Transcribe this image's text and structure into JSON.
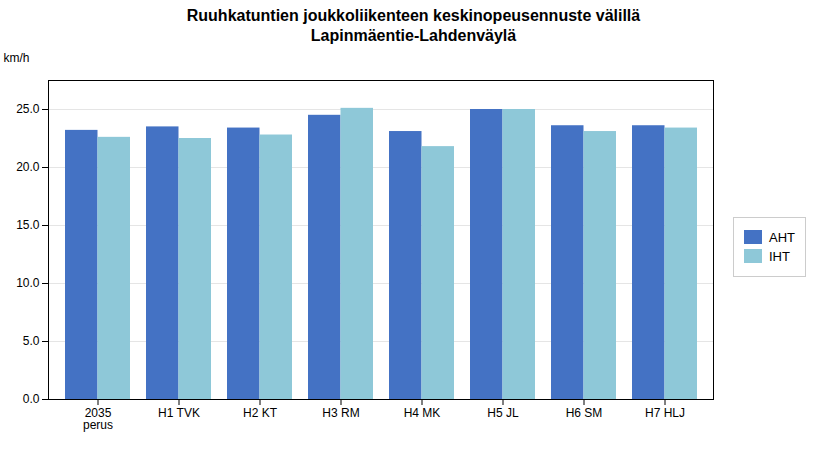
{
  "chart_data": {
    "type": "bar",
    "title": "Ruuhkatuntien joukkoliikenteen keskinopeusennuste välillä\nLapinmäentie-Lahdenväylä",
    "ylabel": "km/h",
    "categories": [
      "2035\nperus",
      "H1 TVK",
      "H2 KT",
      "H3 RM",
      "H4 MK",
      "H5 JL",
      "H6 SM",
      "H7 HLJ"
    ],
    "series": [
      {
        "name": "AHT",
        "color": "#4472C4",
        "values": [
          23.2,
          23.5,
          23.4,
          24.5,
          23.1,
          25.0,
          23.6,
          23.6
        ]
      },
      {
        "name": "IHT",
        "color": "#8EC8D8",
        "values": [
          22.6,
          22.5,
          22.8,
          25.1,
          21.8,
          25.0,
          23.1,
          23.4
        ]
      }
    ],
    "ylim": [
      0,
      27.5
    ],
    "yticks": [
      {
        "value": 0,
        "label": "0.0"
      },
      {
        "value": 5,
        "label": "5.0"
      },
      {
        "value": 10,
        "label": "10.0"
      },
      {
        "value": 15,
        "label": "15.0"
      },
      {
        "value": 20,
        "label": "20.0"
      },
      {
        "value": 25,
        "label": "25.0"
      }
    ],
    "grid": true,
    "legend": "right"
  }
}
